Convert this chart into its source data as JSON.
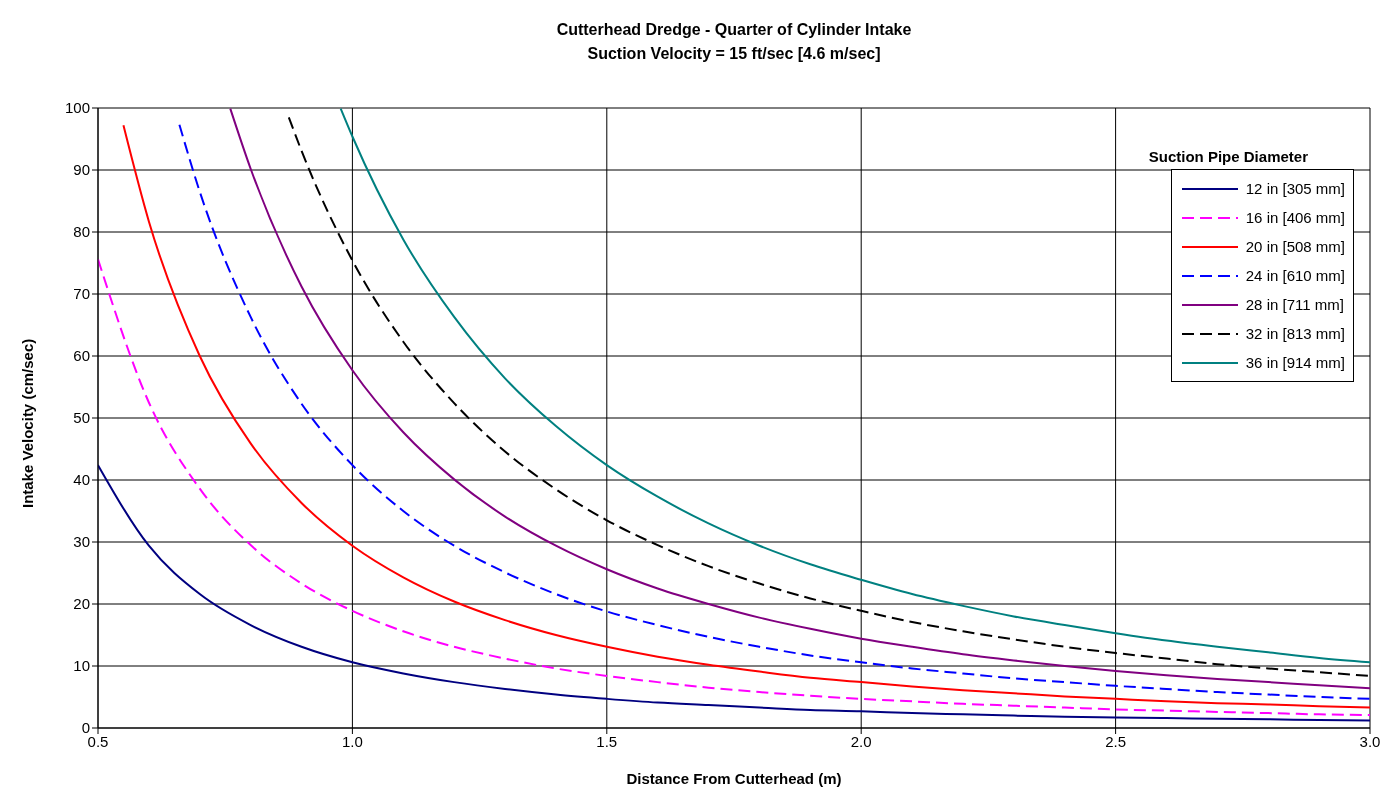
{
  "chart_data": {
    "type": "line",
    "title": "Cutterhead Dredge - Quarter of Cylinder Intake",
    "subtitle": "Suction Velocity = 15 ft/sec [4.6 m/sec]",
    "xlabel": "Distance From Cutterhead (m)",
    "ylabel": "Intake Velocity (cm/sec)",
    "legend_title": "Suction Pipe Diameter",
    "legend": "top right",
    "grid": true,
    "marker": "none",
    "xlim": [
      0.5,
      3.0
    ],
    "xticks": [
      0.5,
      {
        "value": 1,
        "label": "1.0"
      },
      1.5,
      {
        "value": 2,
        "label": "2.0"
      },
      2.5,
      {
        "value": 3,
        "label": "3.0"
      }
    ],
    "ylim": [
      0,
      100
    ],
    "yticks": [
      0,
      10,
      20,
      30,
      40,
      50,
      60,
      70,
      80,
      90,
      100
    ],
    "series": [
      {
        "name": "12 in [305 mm]",
        "color": "#000080",
        "line_style": "solid",
        "x": [
          0.5,
          0.6,
          0.7,
          0.8,
          0.9,
          1.0,
          1.1,
          1.2,
          1.3,
          1.4,
          1.5,
          1.6,
          1.7,
          1.8,
          1.9,
          2.0,
          2.1,
          2.2,
          2.3,
          2.4,
          2.5,
          2.6,
          2.7,
          2.8,
          2.9,
          3.0
        ],
        "values": [
          42.4,
          29.4,
          21.6,
          16.6,
          13.1,
          10.6,
          8.8,
          7.4,
          6.3,
          5.4,
          4.7,
          4.1,
          3.7,
          3.3,
          2.9,
          2.7,
          2.4,
          2.2,
          2.0,
          1.8,
          1.7,
          1.6,
          1.5,
          1.4,
          1.3,
          1.2
        ]
      },
      {
        "name": "16 in [406 mm]",
        "color": "#ff00ff",
        "line_style": "dashed",
        "x": [
          0.5,
          0.6,
          0.7,
          0.8,
          0.9,
          1.0,
          1.1,
          1.2,
          1.3,
          1.4,
          1.5,
          1.6,
          1.7,
          1.8,
          1.9,
          2.0,
          2.1,
          2.2,
          2.3,
          2.4,
          2.5,
          2.6,
          2.7,
          2.8,
          2.9,
          3.0
        ],
        "values": [
          75.6,
          52.5,
          38.6,
          29.5,
          23.3,
          18.9,
          15.6,
          13.1,
          11.2,
          9.6,
          8.4,
          7.4,
          6.5,
          5.8,
          5.2,
          4.7,
          4.3,
          3.9,
          3.6,
          3.3,
          3.0,
          2.8,
          2.6,
          2.4,
          2.2,
          2.1
        ]
      },
      {
        "name": "20 in [508 mm]",
        "color": "#ff0000",
        "line_style": "solid",
        "x": [
          0.55,
          0.6,
          0.7,
          0.8,
          0.9,
          1.0,
          1.1,
          1.2,
          1.3,
          1.4,
          1.5,
          1.6,
          1.7,
          1.8,
          1.9,
          2.0,
          2.1,
          2.2,
          2.3,
          2.4,
          2.5,
          2.6,
          2.7,
          2.8,
          2.9,
          3.0
        ],
        "values": [
          97.2,
          81.7,
          60.0,
          45.9,
          36.3,
          29.4,
          24.3,
          20.4,
          17.4,
          15.0,
          13.1,
          11.5,
          10.2,
          9.1,
          8.1,
          7.4,
          6.7,
          6.1,
          5.6,
          5.1,
          4.7,
          4.3,
          4.0,
          3.8,
          3.5,
          3.3
        ]
      },
      {
        "name": "24 in [610 mm]",
        "color": "#0000ff",
        "line_style": "dashed",
        "x": [
          0.66,
          0.7,
          0.8,
          0.9,
          1.0,
          1.1,
          1.2,
          1.3,
          1.4,
          1.5,
          1.6,
          1.7,
          1.8,
          1.9,
          2.0,
          2.1,
          2.2,
          2.3,
          2.4,
          2.5,
          2.6,
          2.7,
          2.8,
          2.9,
          3.0
        ],
        "values": [
          97.3,
          86.5,
          66.3,
          52.3,
          42.4,
          35.0,
          29.4,
          25.1,
          21.6,
          18.8,
          16.6,
          14.7,
          13.1,
          11.7,
          10.6,
          9.6,
          8.8,
          8.0,
          7.4,
          6.8,
          6.3,
          5.8,
          5.4,
          5.0,
          4.7
        ]
      },
      {
        "name": "28 in [711 mm]",
        "color": "#800080",
        "line_style": "solid",
        "x": [
          0.76,
          0.8,
          0.9,
          1.0,
          1.1,
          1.2,
          1.3,
          1.4,
          1.5,
          1.6,
          1.7,
          1.8,
          1.9,
          2.0,
          2.1,
          2.2,
          2.3,
          2.4,
          2.5,
          2.6,
          2.7,
          2.8,
          2.9,
          3.0
        ],
        "values": [
          99.9,
          90.2,
          71.2,
          57.7,
          47.7,
          40.1,
          34.1,
          29.4,
          25.6,
          22.5,
          20.0,
          17.8,
          16.0,
          14.4,
          13.1,
          11.9,
          10.9,
          10.0,
          9.2,
          8.5,
          7.9,
          7.4,
          6.9,
          6.4
        ]
      },
      {
        "name": "32 in [813 mm]",
        "color": "#000000",
        "line_style": "dashed",
        "x": [
          0.875,
          0.9,
          1.0,
          1.1,
          1.2,
          1.3,
          1.4,
          1.5,
          1.6,
          1.7,
          1.8,
          1.9,
          2.0,
          2.1,
          2.2,
          2.3,
          2.4,
          2.5,
          2.6,
          2.7,
          2.8,
          2.9,
          3.0
        ],
        "values": [
          98.5,
          93.1,
          75.4,
          62.3,
          52.4,
          44.6,
          38.5,
          33.5,
          29.5,
          26.1,
          23.3,
          20.9,
          18.9,
          17.1,
          15.6,
          14.3,
          13.1,
          12.1,
          11.2,
          10.3,
          9.6,
          9.0,
          8.4
        ]
      },
      {
        "name": "36 in [914 mm]",
        "color": "#008080",
        "line_style": "solid",
        "x": [
          0.977,
          1.0,
          1.1,
          1.2,
          1.3,
          1.4,
          1.5,
          1.6,
          1.7,
          1.8,
          1.9,
          2.0,
          2.1,
          2.2,
          2.3,
          2.4,
          2.5,
          2.6,
          2.7,
          2.8,
          2.9,
          3.0
        ],
        "values": [
          99.9,
          95.4,
          78.8,
          66.3,
          56.4,
          48.7,
          42.4,
          37.3,
          33.0,
          29.4,
          26.4,
          23.9,
          21.6,
          19.7,
          18.0,
          16.6,
          15.3,
          14.1,
          13.1,
          12.2,
          11.3,
          10.6
        ]
      }
    ]
  }
}
